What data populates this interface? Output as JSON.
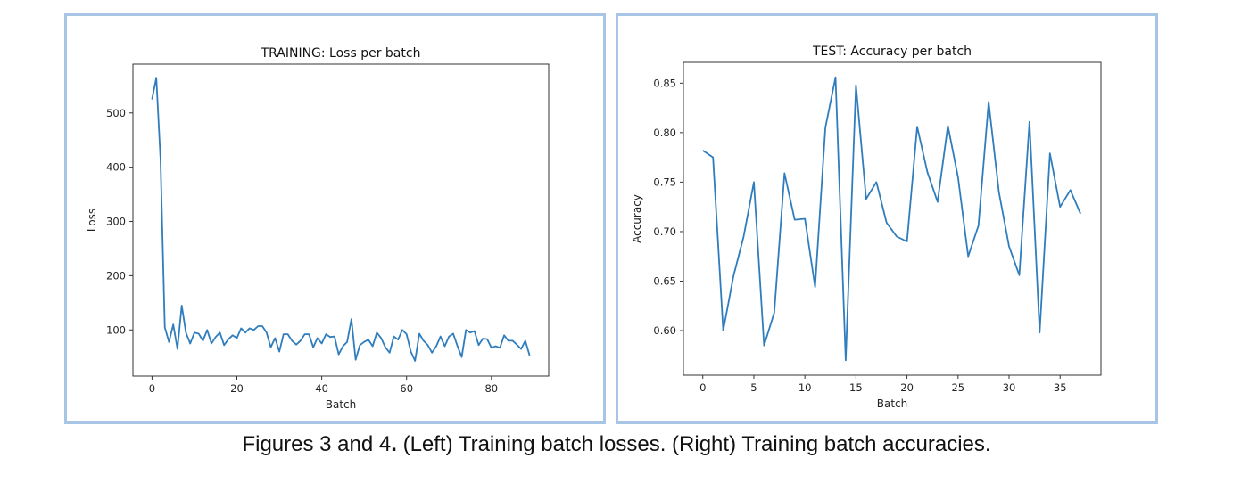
{
  "caption": {
    "prefix": "Figures 3 and 4",
    "dot": ".",
    "rest": " (Left) Training batch losses. (Right) Training batch accuracies."
  },
  "chart_data": [
    {
      "type": "line",
      "title": "TRAINING: Loss per batch",
      "xlabel": "Batch",
      "ylabel": "Loss",
      "xlim": [
        -4.5,
        93.5
      ],
      "ylim": [
        15,
        590
      ],
      "xticks": [
        0,
        20,
        40,
        60,
        80
      ],
      "yticks": [
        100,
        200,
        300,
        400,
        500
      ],
      "grid": false,
      "color": "#2f7dbd",
      "y": [
        525,
        565,
        415,
        105,
        78,
        110,
        65,
        145,
        95,
        75,
        95,
        93,
        80,
        100,
        75,
        87,
        95,
        72,
        83,
        90,
        85,
        103,
        95,
        103,
        100,
        107,
        107,
        95,
        68,
        85,
        60,
        92,
        92,
        80,
        73,
        80,
        92,
        92,
        68,
        85,
        75,
        92,
        87,
        88,
        55,
        70,
        78,
        120,
        45,
        72,
        78,
        82,
        70,
        95,
        85,
        68,
        58,
        88,
        82,
        100,
        92,
        60,
        43,
        93,
        80,
        72,
        58,
        70,
        88,
        70,
        88,
        93,
        70,
        50,
        100,
        95,
        98,
        72,
        84,
        83,
        67,
        70,
        67,
        90,
        80,
        80,
        73,
        65,
        80,
        53
      ]
    },
    {
      "type": "line",
      "title": "TEST: Accuracy per batch",
      "xlabel": "Batch",
      "ylabel": "Accuracy",
      "xlim": [
        -1.9,
        39.0
      ],
      "ylim": [
        0.555,
        0.871
      ],
      "xticks": [
        0,
        5,
        10,
        15,
        20,
        25,
        30,
        35
      ],
      "yticks": [
        0.6,
        0.65,
        0.7,
        0.75,
        0.8,
        0.85
      ],
      "grid": false,
      "color": "#2f7dbd",
      "y": [
        0.782,
        0.775,
        0.6,
        0.655,
        0.695,
        0.75,
        0.585,
        0.618,
        0.759,
        0.712,
        0.713,
        0.644,
        0.805,
        0.856,
        0.57,
        0.848,
        0.733,
        0.75,
        0.709,
        0.695,
        0.69,
        0.806,
        0.76,
        0.73,
        0.807,
        0.755,
        0.675,
        0.706,
        0.831,
        0.74,
        0.685,
        0.656,
        0.811,
        0.598,
        0.779,
        0.725,
        0.742,
        0.718
      ]
    }
  ]
}
